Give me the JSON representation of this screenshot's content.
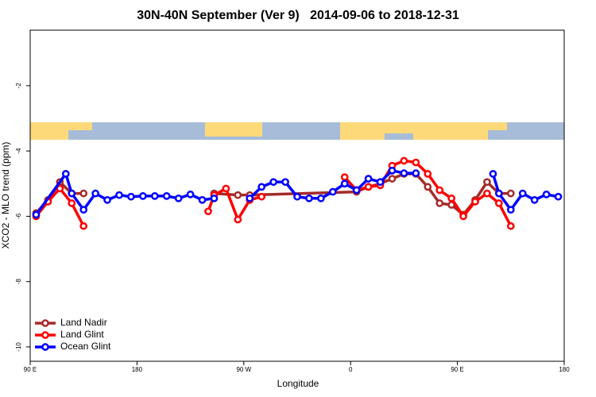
{
  "chart_data": {
    "type": "line",
    "title": "30N-40N September (Ver 9)   2014-09-06 to 2018-12-31",
    "x_label": "Longitude",
    "y_label": "XCO2 - MLO trend (ppm)",
    "xlim": [
      90,
      540
    ],
    "ylim": [
      -10.44,
      -0.3
    ],
    "xticks": [
      {
        "value": 90,
        "label": "90 E"
      },
      {
        "value": 180,
        "label": "180"
      },
      {
        "value": 270,
        "label": "90 W"
      },
      {
        "value": 360,
        "label": "0"
      },
      {
        "value": 450,
        "label": "90 E"
      },
      {
        "value": 540,
        "label": "180"
      }
    ],
    "yticks": [
      -2,
      -4,
      -6,
      -8,
      -10
    ],
    "legend": "bottom-left",
    "series": [
      {
        "name": "Land Nadir",
        "color": "#a52a2a",
        "x": [
          95,
          105,
          115,
          125,
          135,
          185,
          245,
          265,
          275,
          365,
          375,
          385,
          395,
          405,
          415,
          425,
          435,
          445,
          455,
          465,
          475,
          485,
          495
        ],
        "values": [
          -5.9,
          -5.5,
          -4.95,
          -5.3,
          -5.3,
          null,
          -5.3,
          -5.35,
          -5.35,
          -5.25,
          -5.1,
          -5.0,
          -4.85,
          -4.7,
          -4.7,
          -5.1,
          -5.6,
          -5.65,
          -5.95,
          -5.5,
          -4.95,
          -5.3,
          -5.3
        ]
      },
      {
        "name": "Land Glint",
        "color": "#ff0000",
        "x": [
          95,
          105,
          115,
          125,
          135,
          185,
          240,
          245,
          255,
          265,
          275,
          285,
          320,
          355,
          365,
          375,
          385,
          395,
          405,
          415,
          425,
          435,
          445,
          455,
          465,
          475,
          485,
          495
        ],
        "values": [
          -6.0,
          -5.55,
          -5.15,
          -5.6,
          -6.3,
          null,
          -5.85,
          -5.35,
          -5.15,
          -6.1,
          -5.5,
          -5.4,
          null,
          -4.8,
          -5.2,
          -5.1,
          -5.05,
          -4.45,
          -4.3,
          -4.35,
          -4.7,
          -5.2,
          -5.45,
          -6.0,
          -5.55,
          -5.3,
          -5.6,
          -6.3
        ]
      },
      {
        "name": "Ocean Glint",
        "color": "#0000ff",
        "x": [
          95,
          120,
          125,
          135,
          145,
          155,
          165,
          175,
          185,
          195,
          205,
          215,
          225,
          235,
          245,
          260,
          275,
          285,
          295,
          305,
          315,
          325,
          335,
          345,
          355,
          365,
          375,
          385,
          395,
          405,
          415,
          445,
          480,
          485,
          495,
          505,
          515,
          525,
          535
        ],
        "values": [
          -5.95,
          -4.7,
          -5.3,
          -5.8,
          -5.3,
          -5.5,
          -5.35,
          -5.4,
          -5.38,
          -5.38,
          -5.38,
          -5.45,
          -5.33,
          -5.5,
          -5.45,
          null,
          -5.45,
          -5.1,
          -4.95,
          -4.95,
          -5.4,
          -5.45,
          -5.45,
          -5.25,
          -5.0,
          -5.2,
          -4.85,
          -4.95,
          -4.6,
          -4.68,
          -4.68,
          null,
          -4.7,
          -5.3,
          -5.8,
          -5.3,
          -5.5,
          -5.33,
          -5.4
        ]
      }
    ]
  }
}
